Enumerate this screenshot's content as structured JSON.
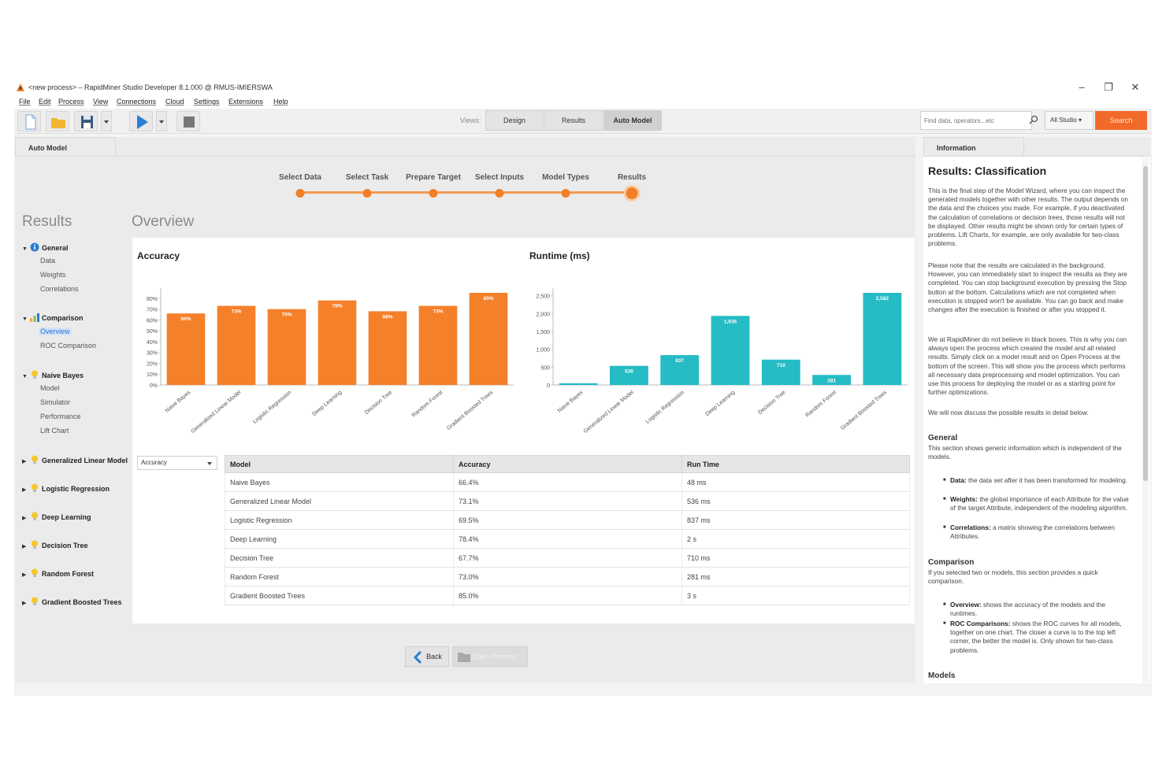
{
  "window": {
    "title": "<new process> – RapidMiner Studio Developer 8.1.000 @ RMUS-IMIERSWA",
    "controls": [
      "–",
      "❐",
      "✕"
    ]
  },
  "menu": [
    "File",
    "Edit",
    "Process",
    "View",
    "Connections",
    "Cloud",
    "Settings",
    "Extensions",
    "Help"
  ],
  "toolbar": {
    "views_label": "Views:",
    "views": [
      "Design",
      "Results",
      "Auto Model"
    ],
    "active_view": "Auto Model",
    "search_placeholder": "Find data, operators...etc",
    "search_scope": "All Studio ▾",
    "search_button": "Search"
  },
  "main_tab": "Auto Model",
  "steps": [
    "Select Data",
    "Select Task",
    "Prepare Target",
    "Select Inputs",
    "Model Types",
    "Results"
  ],
  "current_step": "Results",
  "headings": {
    "results": "Results",
    "overview": "Overview"
  },
  "tree": [
    {
      "title": "General",
      "icon": "info-icon",
      "expanded": true,
      "children": [
        "Data",
        "Weights",
        "Correlations"
      ]
    },
    {
      "title": "Comparison",
      "icon": "comparison-icon",
      "expanded": true,
      "children": [
        "Overview",
        "ROC Comparison"
      ],
      "selected": "Overview"
    },
    {
      "title": "Naive Bayes",
      "icon": "bulb-icon",
      "expanded": true,
      "children": [
        "Model",
        "Simulator",
        "Performance",
        "Lift Chart"
      ]
    },
    {
      "title": "Generalized Linear Model",
      "icon": "bulb-icon",
      "expanded": false,
      "children": []
    },
    {
      "title": "Logistic Regression",
      "icon": "bulb-icon",
      "expanded": false,
      "children": []
    },
    {
      "title": "Deep Learning",
      "icon": "bulb-icon",
      "expanded": false,
      "children": []
    },
    {
      "title": "Decision Tree",
      "icon": "bulb-icon",
      "expanded": false,
      "children": []
    },
    {
      "title": "Random Forest",
      "icon": "bulb-icon",
      "expanded": false,
      "children": []
    },
    {
      "title": "Gradient Boosted Trees",
      "icon": "bulb-icon",
      "expanded": false,
      "children": []
    }
  ],
  "chart_data": [
    {
      "type": "bar",
      "title": "Accuracy",
      "categories": [
        "Naive Bayes",
        "Generalized Linear Model",
        "Logistic Regression",
        "Deep Learning",
        "Decision Tree",
        "Random Forest",
        "Gradient Boosted Trees"
      ],
      "values": [
        66,
        73,
        70,
        78,
        68,
        73,
        85
      ],
      "value_labels": [
        "66%",
        "73%",
        "70%",
        "78%",
        "68%",
        "73%",
        "85%"
      ],
      "y_ticks": [
        "0%",
        "10%",
        "20%",
        "30%",
        "40%",
        "50%",
        "60%",
        "70%",
        "80%"
      ],
      "ylim": [
        0,
        85
      ],
      "color": "#f5802a"
    },
    {
      "type": "bar",
      "title": "Runtime (ms)",
      "categories": [
        "Naive Bayes",
        "Generalized Linear Model",
        "Logistic Regression",
        "Deep Learning",
        "Decision Tree",
        "Random Forest",
        "Gradient Boosted Trees"
      ],
      "values": [
        48,
        536,
        837,
        1936,
        710,
        281,
        2582
      ],
      "value_labels": [
        "",
        "536",
        "837",
        "1,936",
        "710",
        "281",
        "2,582"
      ],
      "y_ticks": [
        "0",
        "500",
        "1,000",
        "1,500",
        "2,000",
        "2,500"
      ],
      "ylim": [
        0,
        2582
      ],
      "color": "#25bcc5"
    }
  ],
  "metric_select": "Accuracy",
  "table": {
    "headers": [
      "Model",
      "Accuracy",
      "Run Time"
    ],
    "rows": [
      [
        "Naive Bayes",
        "66.4%",
        "48 ms"
      ],
      [
        "Generalized Linear Model",
        "73.1%",
        "536 ms"
      ],
      [
        "Logistic Regression",
        "69.5%",
        "837 ms"
      ],
      [
        "Deep Learning",
        "78.4%",
        "2 s"
      ],
      [
        "Decision Tree",
        "67.7%",
        "710 ms"
      ],
      [
        "Random Forest",
        "73.0%",
        "281 ms"
      ],
      [
        "Gradient Boosted Trees",
        "85.0%",
        "3 s"
      ]
    ]
  },
  "buttons": {
    "back": "Back",
    "open_process": "Open Process"
  },
  "info": {
    "tab": "Information",
    "title": "Results: Classification",
    "p1": "This is the final step of the Model Wizard, where you can inspect the generated models together with other results. The output depends on the data and the choices you made. For example, if you deactivated the calculation of correlations or decision trees, those results will not be displayed. Other results might be shown only for certain types of problems. Lift Charts, for example, are only available for two-class problems.",
    "p2": "Please note that the results are calculated in the background. However, you can immediately start to inspect the results as they are completed. You can stop background execution by pressing the Stop button at the bottom. Calculations which are not completed when execution is stopped won't be available. You can go back and make changes after the execution is finished or after you stopped it.",
    "p3": "We at RapidMiner do not believe in black boxes. This is why you can always open the process which created the model and all related results. Simply click on a model result and on Open Process at the bottom of the screen. This will show you the process which performs all necessary data preprocessing and model optimization. You can use this process for deploying the model or as a starting point for further optimizations.",
    "p4": "We will now discuss the possible results in detail below.",
    "general_h": "General",
    "general_p": "This section shows generic information which is independent of the models.",
    "general_bullets": [
      {
        "term": "Data:",
        "text": " the data set after it has been transformed for modeling."
      },
      {
        "term": "Weights:",
        "text": " the global importance of each Attribute for the value of the target Attribute, independent of the modeling algorithm."
      },
      {
        "term": "Correlations:",
        "text": " a matrix showing the correlations between Attributes."
      }
    ],
    "comparison_h": "Comparison",
    "comparison_p": "If you selected two or models, this section provides a quick comparison.",
    "comparison_bullets": [
      {
        "term": "Overview:",
        "text": " shows the accuracy of the models and the runtimes."
      },
      {
        "term": "ROC Comparisons:",
        "text": " shows the ROC curves for all models, together on one chart. The closer a curve is to the top left corner, the better the model is. Only shown for two-class problems."
      }
    ],
    "models_h": "Models"
  }
}
